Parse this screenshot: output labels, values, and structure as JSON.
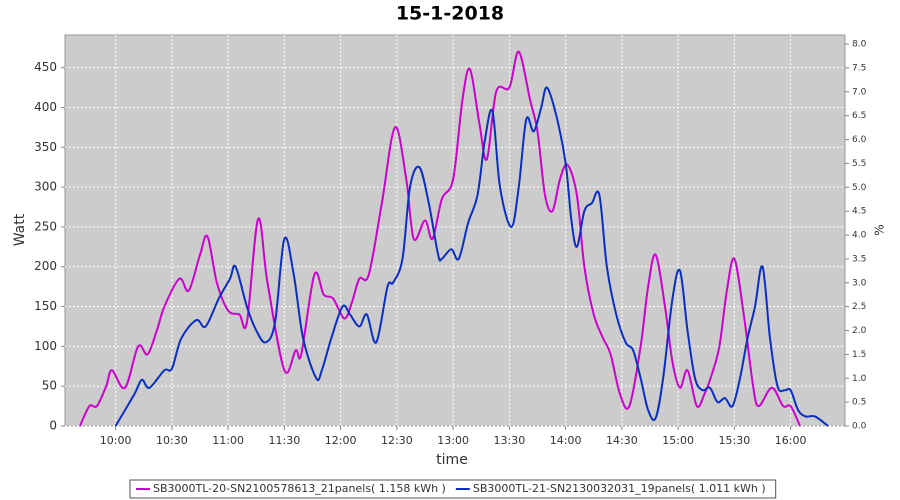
{
  "chart_data": {
    "type": "line",
    "title": "15-1-2018",
    "x_label": "time",
    "y_label": "Watt",
    "y2_label": "%",
    "xlim": [
      "09:33",
      "16:29"
    ],
    "xticks": [
      "10:00",
      "10:30",
      "11:00",
      "11:30",
      "12:00",
      "12:30",
      "13:00",
      "13:30",
      "14:00",
      "14:30",
      "15:00",
      "15:30",
      "16:00"
    ],
    "ylim": [
      0,
      491
    ],
    "yticks": [
      0,
      50,
      100,
      150,
      200,
      250,
      300,
      350,
      400,
      450
    ],
    "y2lim": [
      0,
      8.19
    ],
    "y2ticks": [
      {
        "value": 0,
        "label": "0.0"
      },
      {
        "value": 0.5,
        "label": "0.5"
      },
      {
        "value": 1,
        "label": "1.0"
      },
      {
        "value": 1.5,
        "label": "1.5"
      },
      {
        "value": 2,
        "label": "2.0"
      },
      {
        "value": 2.5,
        "label": "2.5"
      },
      {
        "value": 3,
        "label": "3.0"
      },
      {
        "value": 3.5,
        "label": "3.5"
      },
      {
        "value": 4,
        "label": "4.0"
      },
      {
        "value": 4.5,
        "label": "4.5"
      },
      {
        "value": 5,
        "label": "5.0"
      },
      {
        "value": 5.5,
        "label": "5.5"
      },
      {
        "value": 6,
        "label": "6.0"
      },
      {
        "value": 6.5,
        "label": "6.5"
      },
      {
        "value": 7,
        "label": "7.0"
      },
      {
        "value": 7.5,
        "label": "7.5"
      },
      {
        "value": 8,
        "label": "8.0"
      }
    ],
    "grid": true,
    "legend": "bottom",
    "series": [
      {
        "name": "SB3000TL-20-SN2100578613_21panels( 1.158 kWh )",
        "color": "#cc00cc",
        "x": [
          "09:41",
          "09:46",
          "09:50",
          "09:55",
          "09:58",
          "10:05",
          "10:12",
          "10:17",
          "10:22",
          "10:26",
          "10:34",
          "10:39",
          "10:45",
          "10:49",
          "10:54",
          "11:00",
          "11:06",
          "11:10",
          "11:16",
          "11:21",
          "11:30",
          "11:36",
          "11:39",
          "11:46",
          "11:51",
          "11:56",
          "12:02",
          "12:06",
          "12:10",
          "12:15",
          "12:22",
          "12:29",
          "12:35",
          "12:39",
          "12:45",
          "12:49",
          "12:54",
          "13:00",
          "13:05",
          "13:09",
          "13:14",
          "13:18",
          "13:23",
          "13:30",
          "13:35",
          "13:41",
          "13:45",
          "13:49",
          "13:53",
          "13:57",
          "14:01",
          "14:06",
          "14:10",
          "14:15",
          "14:20",
          "14:24",
          "14:29",
          "14:34",
          "14:40",
          "14:44",
          "14:48",
          "14:53",
          "14:57",
          "15:01",
          "15:05",
          "15:10",
          "15:14",
          "15:18",
          "15:22",
          "15:26",
          "15:30",
          "15:35",
          "15:40",
          "15:43",
          "15:50",
          "15:56",
          "16:00",
          "16:05"
        ],
        "values": [
          0,
          25,
          25,
          50,
          70,
          48,
          100,
          90,
          120,
          150,
          185,
          170,
          215,
          238,
          180,
          145,
          140,
          130,
          260,
          180,
          70,
          95,
          90,
          190,
          165,
          160,
          135,
          155,
          185,
          190,
          280,
          375,
          310,
          235,
          258,
          235,
          285,
          310,
          410,
          448,
          380,
          335,
          420,
          425,
          470,
          410,
          370,
          290,
          270,
          310,
          328,
          290,
          200,
          140,
          110,
          90,
          40,
          25,
          100,
          175,
          215,
          150,
          80,
          48,
          70,
          25,
          40,
          65,
          100,
          170,
          210,
          140,
          50,
          25,
          48,
          25,
          25,
          0
        ]
      },
      {
        "name": "SB3000TL-21-SN2130032031_19panels( 1.011 kWh )",
        "color": "#0a2fc0",
        "x": [
          "10:00",
          "10:10",
          "10:14",
          "10:18",
          "10:26",
          "10:30",
          "10:35",
          "10:43",
          "10:48",
          "10:55",
          "11:01",
          "11:04",
          "11:10",
          "11:15",
          "11:20",
          "11:25",
          "11:30",
          "11:35",
          "11:40",
          "11:47",
          "11:50",
          "11:55",
          "12:01",
          "12:05",
          "12:10",
          "12:14",
          "12:19",
          "12:25",
          "12:28",
          "12:33",
          "12:37",
          "12:42",
          "12:47",
          "12:52",
          "12:54",
          "12:59",
          "13:03",
          "13:08",
          "13:13",
          "13:17",
          "13:21",
          "13:25",
          "13:31",
          "13:35",
          "13:39",
          "13:43",
          "13:47",
          "13:50",
          "13:55",
          "14:00",
          "14:03",
          "14:06",
          "14:10",
          "14:14",
          "14:18",
          "14:22",
          "14:27",
          "14:32",
          "14:36",
          "14:40",
          "14:44",
          "14:48",
          "14:52",
          "14:57",
          "15:01",
          "15:05",
          "15:09",
          "15:13",
          "15:17",
          "15:21",
          "15:25",
          "15:29",
          "15:33",
          "15:37",
          "15:41",
          "15:45",
          "15:49",
          "15:53",
          "15:57",
          "16:00",
          "16:04",
          "16:08",
          "16:13",
          "16:20"
        ],
        "values": [
          0,
          40,
          58,
          48,
          70,
          72,
          110,
          133,
          125,
          160,
          185,
          200,
          150,
          120,
          105,
          130,
          235,
          190,
          110,
          60,
          70,
          110,
          150,
          140,
          125,
          140,
          105,
          175,
          180,
          210,
          300,
          325,
          280,
          215,
          210,
          222,
          210,
          255,
          290,
          360,
          395,
          300,
          250,
          300,
          385,
          370,
          400,
          425,
          390,
          330,
          260,
          225,
          270,
          280,
          290,
          200,
          140,
          105,
          95,
          60,
          20,
          10,
          60,
          160,
          195,
          120,
          60,
          45,
          48,
          30,
          35,
          25,
          60,
          110,
          150,
          200,
          110,
          50,
          45,
          45,
          20,
          12,
          12,
          0
        ]
      }
    ]
  }
}
